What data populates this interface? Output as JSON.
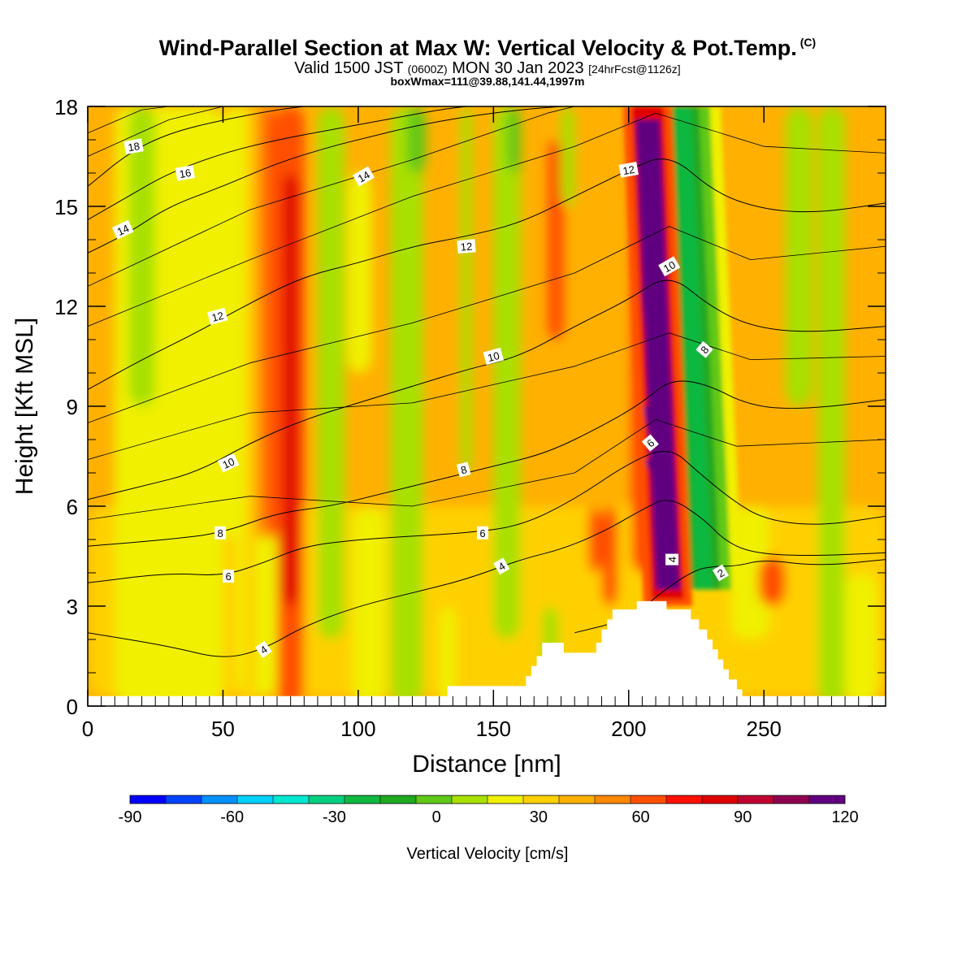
{
  "header": {
    "title": "Wind-Parallel Section at Max W: Vertical Velocity & Pot.Temp.",
    "copyright": "(C)",
    "valid_a": "Valid 1500 JST",
    "valid_b": "(0600Z)",
    "valid_c": "MON 30 Jan 2023",
    "valid_d": "[24hrFcst@1126z]",
    "boxline": "boxWmax=111@39.88,141.44,1997m"
  },
  "chart_data": {
    "type": "heatmap",
    "xlabel": "Distance [nm]",
    "ylabel": "Height [Kft MSL]",
    "xlim": [
      0,
      295
    ],
    "ylim": [
      0,
      18
    ],
    "xticks": [
      0,
      50,
      100,
      150,
      200,
      250
    ],
    "yticks": [
      0,
      3,
      6,
      9,
      12,
      15,
      18
    ],
    "colorbar": {
      "label": "Vertical Velocity [cm/s]",
      "min": -90,
      "max": 120,
      "step": 7.5,
      "tick_labels": [
        -90,
        -60,
        -30,
        0,
        30,
        60,
        90,
        120
      ],
      "colors": [
        "#0000ff",
        "#0044ff",
        "#0090ff",
        "#00d0ff",
        "#00e8d0",
        "#00d080",
        "#10b840",
        "#20a820",
        "#60c818",
        "#a8e000",
        "#f0f000",
        "#ffd000",
        "#ffb000",
        "#ff8800",
        "#ff5000",
        "#ff1000",
        "#e00000",
        "#c00030",
        "#900050",
        "#600080"
      ]
    },
    "updraft_core": {
      "x": 214,
      "z_base": 3.0,
      "z_top": 18,
      "w_max": 111
    },
    "downdraft_band": {
      "x": 226,
      "z_base": 3.5,
      "z_top": 18,
      "w_min": -40
    },
    "terrain": [
      [
        0,
        0.3
      ],
      [
        133,
        0.3
      ],
      [
        133,
        0.6
      ],
      [
        160,
        0.6
      ],
      [
        162,
        0.9
      ],
      [
        164,
        1.2
      ],
      [
        166,
        1.5
      ],
      [
        168,
        1.9
      ],
      [
        174,
        1.9
      ],
      [
        176,
        1.6
      ],
      [
        186,
        1.6
      ],
      [
        188,
        1.9
      ],
      [
        190,
        2.3
      ],
      [
        192,
        2.6
      ],
      [
        194,
        2.9
      ],
      [
        202,
        2.9
      ],
      [
        203,
        3.15
      ],
      [
        213,
        3.15
      ],
      [
        214,
        2.9
      ],
      [
        222,
        2.9
      ],
      [
        223,
        2.6
      ],
      [
        226,
        2.3
      ],
      [
        229,
        2.0
      ],
      [
        231,
        1.7
      ],
      [
        233,
        1.4
      ],
      [
        235,
        1.1
      ],
      [
        237,
        0.8
      ],
      [
        240,
        0.5
      ],
      [
        242,
        0.3
      ],
      [
        295,
        0.3
      ]
    ],
    "theta_contours": [
      {
        "value": 2,
        "points": [
          [
            180,
            2.2
          ],
          [
            200,
            2.6
          ],
          [
            215,
            3.6
          ],
          [
            225,
            4.1
          ],
          [
            232,
            4.2
          ],
          [
            240,
            4.2
          ],
          [
            250,
            4.4
          ],
          [
            270,
            4.2
          ],
          [
            295,
            4.4
          ]
        ]
      },
      {
        "value": 4,
        "points": [
          [
            0,
            2.2
          ],
          [
            30,
            1.8
          ],
          [
            50,
            1.4
          ],
          [
            65,
            1.7
          ],
          [
            80,
            2.4
          ],
          [
            100,
            3.0
          ],
          [
            120,
            3.4
          ],
          [
            140,
            3.8
          ],
          [
            160,
            4.4
          ],
          [
            175,
            4.7
          ],
          [
            190,
            5.2
          ],
          [
            205,
            5.9
          ],
          [
            215,
            6.3
          ],
          [
            228,
            5.6
          ],
          [
            235,
            5.0
          ],
          [
            245,
            4.6
          ],
          [
            265,
            4.5
          ],
          [
            295,
            4.6
          ]
        ]
      },
      {
        "value": 6,
        "points": [
          [
            0,
            3.7
          ],
          [
            30,
            4.0
          ],
          [
            50,
            3.9
          ],
          [
            65,
            4.3
          ],
          [
            80,
            4.8
          ],
          [
            100,
            5.0
          ],
          [
            120,
            5.1
          ],
          [
            140,
            5.2
          ],
          [
            160,
            5.4
          ],
          [
            180,
            6.2
          ],
          [
            200,
            7.3
          ],
          [
            215,
            7.8
          ],
          [
            226,
            7.0
          ],
          [
            238,
            6.2
          ],
          [
            250,
            5.6
          ],
          [
            270,
            5.4
          ],
          [
            295,
            5.7
          ]
        ]
      },
      {
        "value": 8,
        "points": [
          [
            0,
            4.8
          ],
          [
            30,
            5.0
          ],
          [
            50,
            5.2
          ],
          [
            70,
            5.8
          ],
          [
            90,
            6.0
          ],
          [
            110,
            6.4
          ],
          [
            130,
            6.8
          ],
          [
            150,
            7.2
          ],
          [
            170,
            7.6
          ],
          [
            190,
            8.4
          ],
          [
            205,
            9.1
          ],
          [
            215,
            9.8
          ],
          [
            228,
            9.7
          ],
          [
            245,
            9.0
          ],
          [
            265,
            8.9
          ],
          [
            295,
            9.2
          ]
        ]
      },
      {
        "value": 10,
        "points": [
          [
            0,
            6.2
          ],
          [
            20,
            6.6
          ],
          [
            40,
            7.0
          ],
          [
            60,
            7.9
          ],
          [
            80,
            8.6
          ],
          [
            100,
            9.1
          ],
          [
            120,
            9.6
          ],
          [
            140,
            10.1
          ],
          [
            160,
            10.5
          ],
          [
            180,
            11.4
          ],
          [
            200,
            12.2
          ],
          [
            215,
            13.0
          ],
          [
            230,
            12.0
          ],
          [
            245,
            11.4
          ],
          [
            265,
            11.2
          ],
          [
            295,
            11.4
          ]
        ]
      },
      {
        "value": 12,
        "points": [
          [
            0,
            9.5
          ],
          [
            20,
            10.4
          ],
          [
            40,
            11.2
          ],
          [
            60,
            12.1
          ],
          [
            80,
            12.9
          ],
          [
            100,
            13.3
          ],
          [
            120,
            13.8
          ],
          [
            140,
            14.1
          ],
          [
            160,
            14.5
          ],
          [
            180,
            15.3
          ],
          [
            200,
            16.1
          ],
          [
            215,
            16.6
          ],
          [
            232,
            15.4
          ],
          [
            250,
            14.9
          ],
          [
            270,
            14.8
          ],
          [
            295,
            15.1
          ]
        ]
      },
      {
        "value": 14,
        "points": [
          [
            0,
            13.6
          ],
          [
            15,
            14.2
          ],
          [
            30,
            15.0
          ],
          [
            50,
            15.6
          ],
          [
            70,
            16.3
          ],
          [
            90,
            16.8
          ],
          [
            105,
            17.1
          ],
          [
            120,
            17.4
          ],
          [
            140,
            17.7
          ],
          [
            160,
            17.9
          ],
          [
            175,
            18.0
          ]
        ]
      },
      {
        "value": 16,
        "points": [
          [
            0,
            14.6
          ],
          [
            15,
            15.3
          ],
          [
            30,
            16.0
          ],
          [
            50,
            16.6
          ],
          [
            70,
            17.0
          ],
          [
            90,
            17.3
          ],
          [
            110,
            17.6
          ],
          [
            130,
            17.9
          ],
          [
            140,
            18.0
          ]
        ]
      },
      {
        "value": 18,
        "points": [
          [
            0,
            15.6
          ],
          [
            15,
            16.6
          ],
          [
            30,
            17.2
          ],
          [
            50,
            17.6
          ],
          [
            70,
            17.9
          ],
          [
            80,
            18.0
          ]
        ]
      }
    ],
    "contour_labels": [
      {
        "text": "18",
        "x": 17,
        "z": 16.8,
        "rot": -10
      },
      {
        "text": "16",
        "x": 36,
        "z": 16.0,
        "rot": -10
      },
      {
        "text": "14",
        "x": 102,
        "z": 15.9,
        "rot": -30
      },
      {
        "text": "14",
        "x": 13,
        "z": 14.3,
        "rot": -25
      },
      {
        "text": "12",
        "x": 200,
        "z": 16.1,
        "rot": -10
      },
      {
        "text": "12",
        "x": 140,
        "z": 13.8,
        "rot": -5
      },
      {
        "text": "10",
        "x": 215,
        "z": 13.2,
        "rot": -30
      },
      {
        "text": "12",
        "x": 48,
        "z": 11.7,
        "rot": -15
      },
      {
        "text": "10",
        "x": 150,
        "z": 10.5,
        "rot": -15
      },
      {
        "text": "8",
        "x": 228,
        "z": 10.7,
        "rot": -50
      },
      {
        "text": "10",
        "x": 52,
        "z": 7.3,
        "rot": -25
      },
      {
        "text": "6",
        "x": 208,
        "z": 7.9,
        "rot": -40
      },
      {
        "text": "8",
        "x": 139,
        "z": 7.1,
        "rot": -15
      },
      {
        "text": "8",
        "x": 49,
        "z": 5.2,
        "rot": 0
      },
      {
        "text": "6",
        "x": 146,
        "z": 5.2,
        "rot": 0
      },
      {
        "text": "4",
        "x": 153,
        "z": 4.2,
        "rot": -30
      },
      {
        "text": "6",
        "x": 52,
        "z": 3.9,
        "rot": 0
      },
      {
        "text": "4",
        "x": 216,
        "z": 4.4,
        "rot": -90
      },
      {
        "text": "2",
        "x": 234,
        "z": 4.0,
        "rot": -30
      },
      {
        "text": "4",
        "x": 65,
        "z": 1.7,
        "rot": -35
      }
    ]
  }
}
